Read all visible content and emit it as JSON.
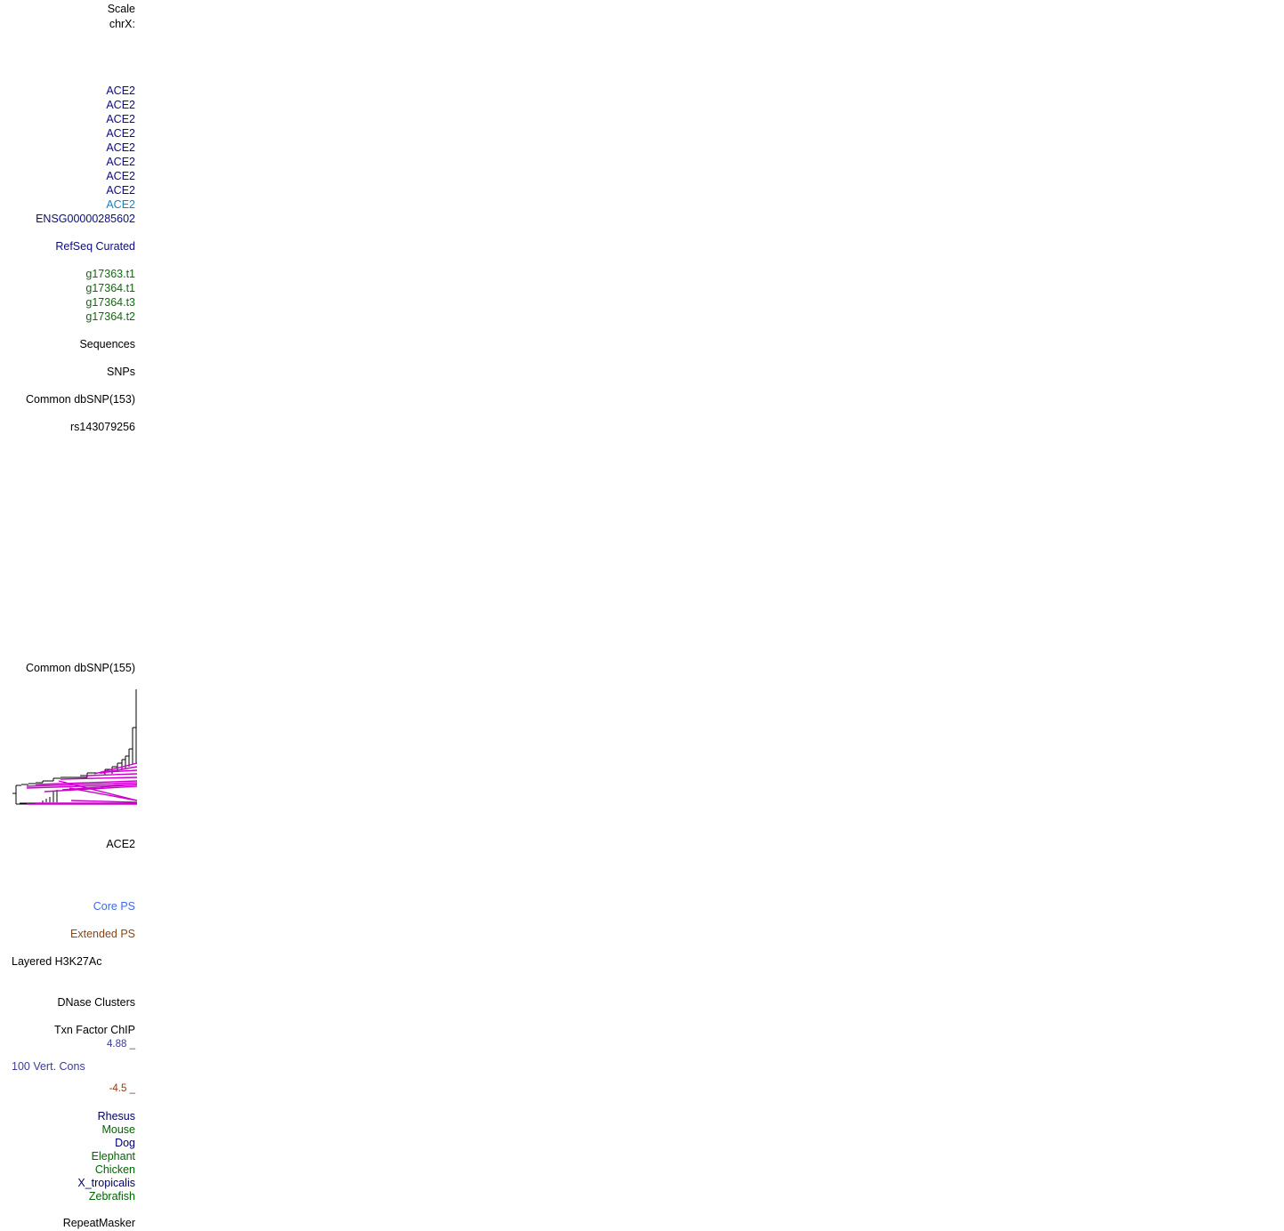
{
  "ruler": {
    "scale_label": "Scale",
    "chrom_label": "chrX:"
  },
  "gene_tracks": {
    "ace2_labels": [
      "ACE2",
      "ACE2",
      "ACE2",
      "ACE2",
      "ACE2",
      "ACE2",
      "ACE2",
      "ACE2"
    ],
    "ace2_light_label": "ACE2",
    "ensg_label": "ENSG00000285602",
    "refseq_curated": "RefSeq Curated",
    "augustus": [
      "g17363.t1",
      "g17364.t1",
      "g17364.t3",
      "g17364.t2"
    ]
  },
  "tracks": {
    "sequences": "Sequences",
    "snps": "SNPs",
    "dbsnp153": "Common dbSNP(153)",
    "rs_label": "rs143079256",
    "dbsnp155": "Common dbSNP(155)",
    "ace2_plain": "ACE2",
    "core_ps": "Core PS",
    "extended_ps": "Extended PS",
    "layered_h3k27ac": "Layered H3K27Ac",
    "dnase": "DNase Clusters",
    "txn_factor": "Txn Factor ChIP",
    "cons_max": "4.88 _",
    "cons_label": "100 Vert. Cons",
    "cons_min": "-4.5 _",
    "repeatmasker": "RepeatMasker"
  },
  "species": [
    {
      "name": "Rhesus",
      "color": "#000066"
    },
    {
      "name": "Mouse",
      "color": "#006400"
    },
    {
      "name": "Dog",
      "color": "#000066"
    },
    {
      "name": "Elephant",
      "color": "#006400"
    },
    {
      "name": "Chicken",
      "color": "#006400"
    },
    {
      "name": "X_tropicalis",
      "color": "#000066"
    },
    {
      "name": "Zebrafish",
      "color": "#006400"
    }
  ],
  "colors": {
    "black": "#000000",
    "navy": "#0c0c78",
    "light_blue": "#1f7fbf",
    "green": "#0f6b0f",
    "core_ps": "#4169e1",
    "extended_ps": "#8b4513",
    "cons_blue": "#3c3c96",
    "cons_brown": "#8b3a1a",
    "tree_magenta": "#cc00cc"
  }
}
